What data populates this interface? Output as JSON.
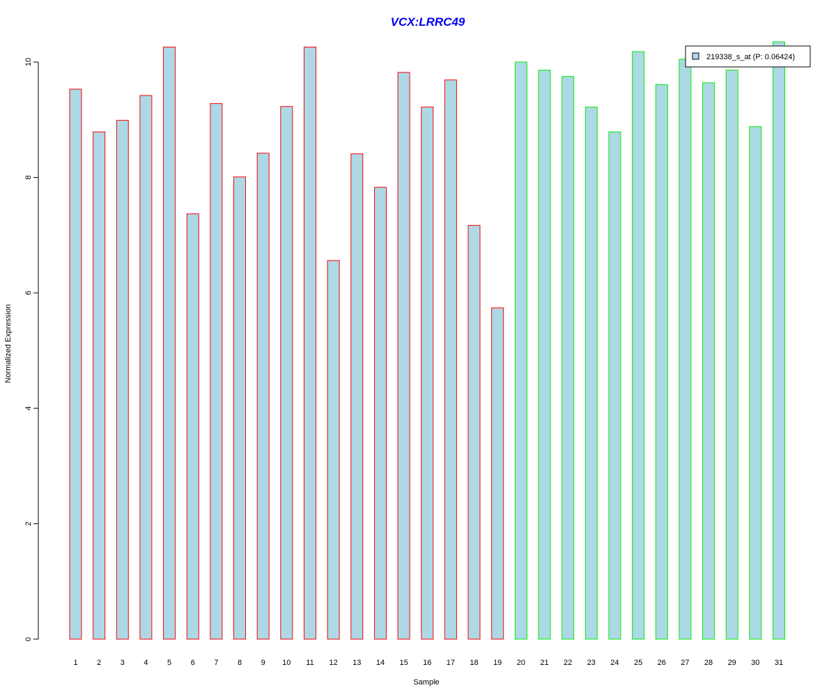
{
  "chart_data": {
    "type": "bar",
    "title": "VCX:LRRC49",
    "xlabel": "Sample",
    "ylabel": "Normalized Expression",
    "ylim": [
      0,
      10.3
    ],
    "yticks": [
      "0",
      "2",
      "4",
      "6",
      "8",
      "10"
    ],
    "categories": [
      "1",
      "2",
      "3",
      "4",
      "5",
      "6",
      "7",
      "8",
      "9",
      "10",
      "11",
      "12",
      "13",
      "14",
      "15",
      "16",
      "17",
      "18",
      "19",
      "20",
      "21",
      "22",
      "23",
      "24",
      "25",
      "26",
      "27",
      "28",
      "29",
      "30",
      "31"
    ],
    "series": [
      {
        "name": "219338_s_at (P: 0.06424)",
        "values": [
          9.53,
          8.79,
          8.99,
          9.42,
          10.26,
          7.37,
          9.28,
          8.01,
          8.42,
          9.23,
          10.26,
          6.56,
          8.41,
          7.83,
          9.82,
          9.22,
          9.69,
          7.17,
          5.74,
          10.0,
          9.86,
          9.75,
          9.22,
          8.79,
          10.18,
          9.61,
          10.05,
          9.64,
          9.86,
          8.88,
          10.35
        ]
      }
    ],
    "group_border_colors": [
      "#ff0000",
      "#ff0000",
      "#ff0000",
      "#ff0000",
      "#ff0000",
      "#ff0000",
      "#ff0000",
      "#ff0000",
      "#ff0000",
      "#ff0000",
      "#ff0000",
      "#ff0000",
      "#ff0000",
      "#ff0000",
      "#ff0000",
      "#ff0000",
      "#ff0000",
      "#ff0000",
      "#ff0000",
      "#00ee00",
      "#00ee00",
      "#00ee00",
      "#00ee00",
      "#00ee00",
      "#00ee00",
      "#00ee00",
      "#00ee00",
      "#00ee00",
      "#00ee00",
      "#00ee00",
      "#00ee00"
    ],
    "bar_fill_color": "#add8e6",
    "title_color": "#0000ee",
    "legend": {
      "label": "219338_s_at (P: 0.06424)",
      "position": "top-right"
    },
    "grid": false
  }
}
